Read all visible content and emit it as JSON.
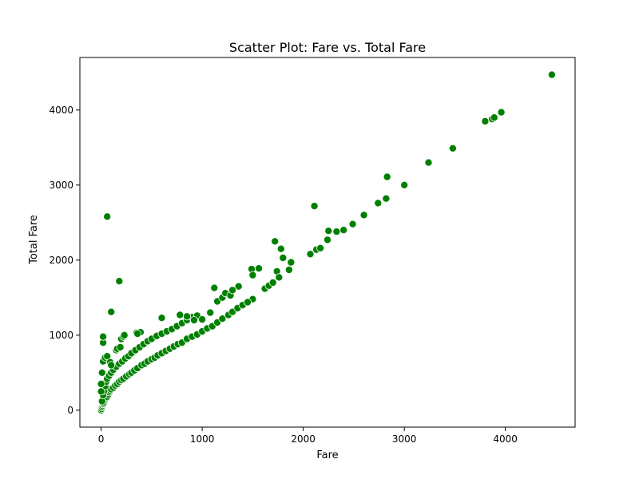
{
  "chart_data": {
    "type": "scatter",
    "title": "Scatter Plot: Fare vs. Total Fare",
    "xlabel": "Fare",
    "ylabel": "Total Fare",
    "xlim": [
      -210,
      4690
    ],
    "ylim": [
      -225,
      4700
    ],
    "xticks": [
      0,
      1000,
      2000,
      3000,
      4000
    ],
    "yticks": [
      0,
      1000,
      2000,
      3000,
      4000
    ],
    "grid": false,
    "color": "#008000",
    "points": [
      [
        0,
        0
      ],
      [
        5,
        20
      ],
      [
        10,
        40
      ],
      [
        15,
        60
      ],
      [
        20,
        80
      ],
      [
        25,
        90
      ],
      [
        30,
        110
      ],
      [
        40,
        140
      ],
      [
        50,
        160
      ],
      [
        60,
        180
      ],
      [
        70,
        210
      ],
      [
        80,
        240
      ],
      [
        90,
        260
      ],
      [
        100,
        280
      ],
      [
        120,
        300
      ],
      [
        140,
        330
      ],
      [
        160,
        350
      ],
      [
        180,
        380
      ],
      [
        200,
        400
      ],
      [
        220,
        420
      ],
      [
        250,
        450
      ],
      [
        280,
        480
      ],
      [
        300,
        500
      ],
      [
        330,
        530
      ],
      [
        360,
        560
      ],
      [
        400,
        600
      ],
      [
        430,
        620
      ],
      [
        460,
        650
      ],
      [
        500,
        680
      ],
      [
        530,
        700
      ],
      [
        560,
        730
      ],
      [
        600,
        760
      ],
      [
        640,
        790
      ],
      [
        680,
        820
      ],
      [
        720,
        850
      ],
      [
        760,
        880
      ],
      [
        800,
        900
      ],
      [
        850,
        950
      ],
      [
        900,
        980
      ],
      [
        950,
        1010
      ],
      [
        1000,
        1050
      ],
      [
        1050,
        1090
      ],
      [
        1100,
        1120
      ],
      [
        1150,
        1170
      ],
      [
        1200,
        1220
      ],
      [
        1260,
        1270
      ],
      [
        1300,
        1310
      ],
      [
        1350,
        1360
      ],
      [
        1400,
        1400
      ],
      [
        1450,
        1440
      ],
      [
        1500,
        1480
      ],
      [
        10,
        120
      ],
      [
        20,
        200
      ],
      [
        30,
        260
      ],
      [
        40,
        320
      ],
      [
        50,
        380
      ],
      [
        60,
        420
      ],
      [
        80,
        460
      ],
      [
        100,
        500
      ],
      [
        120,
        540
      ],
      [
        150,
        580
      ],
      [
        180,
        620
      ],
      [
        210,
        650
      ],
      [
        240,
        690
      ],
      [
        270,
        720
      ],
      [
        300,
        760
      ],
      [
        340,
        800
      ],
      [
        380,
        840
      ],
      [
        420,
        880
      ],
      [
        460,
        920
      ],
      [
        500,
        950
      ],
      [
        550,
        990
      ],
      [
        600,
        1020
      ],
      [
        650,
        1050
      ],
      [
        700,
        1080
      ],
      [
        750,
        1120
      ],
      [
        800,
        1160
      ],
      [
        850,
        1200
      ],
      [
        900,
        1240
      ],
      [
        950,
        1260
      ],
      [
        0,
        250
      ],
      [
        0,
        350
      ],
      [
        10,
        500
      ],
      [
        20,
        650
      ],
      [
        20,
        900
      ],
      [
        20,
        980
      ],
      [
        40,
        700
      ],
      [
        60,
        720
      ],
      [
        90,
        640
      ],
      [
        100,
        600
      ],
      [
        150,
        800
      ],
      [
        160,
        820
      ],
      [
        190,
        840
      ],
      [
        200,
        950
      ],
      [
        220,
        980
      ],
      [
        230,
        1000
      ],
      [
        350,
        1030
      ],
      [
        390,
        1040
      ],
      [
        360,
        1020
      ],
      [
        600,
        1230
      ],
      [
        780,
        1270
      ],
      [
        850,
        1250
      ],
      [
        920,
        1200
      ],
      [
        1000,
        1210
      ],
      [
        1080,
        1300
      ],
      [
        1120,
        1630
      ],
      [
        1150,
        1450
      ],
      [
        1200,
        1500
      ],
      [
        1230,
        1560
      ],
      [
        1280,
        1530
      ],
      [
        1300,
        1600
      ],
      [
        1360,
        1650
      ],
      [
        1450,
        1440
      ],
      [
        1490,
        1880
      ],
      [
        1500,
        1800
      ],
      [
        1560,
        1890
      ],
      [
        1620,
        1620
      ],
      [
        1660,
        1660
      ],
      [
        1700,
        1700
      ],
      [
        1720,
        2250
      ],
      [
        1740,
        1850
      ],
      [
        1760,
        1770
      ],
      [
        1780,
        2150
      ],
      [
        1800,
        2030
      ],
      [
        1860,
        1870
      ],
      [
        1880,
        1970
      ],
      [
        60,
        2580
      ],
      [
        100,
        1310
      ],
      [
        180,
        1720
      ],
      [
        2070,
        2080
      ],
      [
        2110,
        2720
      ],
      [
        2130,
        2140
      ],
      [
        2170,
        2160
      ],
      [
        2240,
        2270
      ],
      [
        2250,
        2390
      ],
      [
        2330,
        2380
      ],
      [
        2400,
        2400
      ],
      [
        2490,
        2480
      ],
      [
        2600,
        2600
      ],
      [
        2740,
        2760
      ],
      [
        2820,
        2820
      ],
      [
        2830,
        3110
      ],
      [
        3000,
        3000
      ],
      [
        3240,
        3300
      ],
      [
        3480,
        3490
      ],
      [
        3800,
        3850
      ],
      [
        3870,
        3880
      ],
      [
        3890,
        3900
      ],
      [
        3960,
        3970
      ],
      [
        4460,
        4470
      ]
    ]
  }
}
